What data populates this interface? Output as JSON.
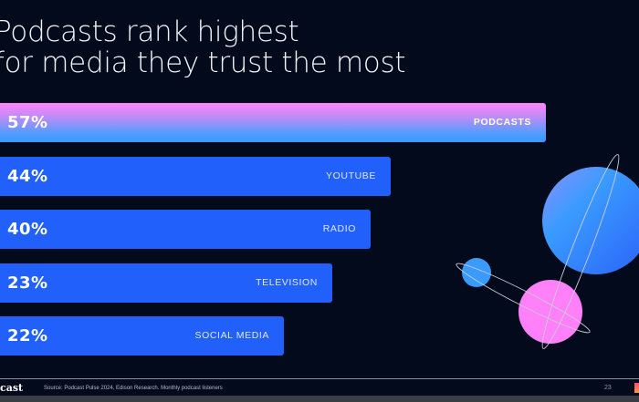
{
  "slide": {
    "title_lines": [
      "Podcasts rank highest",
      "for media they trust the most"
    ],
    "footer": {
      "brand": "cast",
      "source": "Source: Podcast Pulse 2024, Edison Research. Monthly podcast listeners",
      "page_number": "23"
    }
  },
  "colors": {
    "background": "#020a1c",
    "bar": "#2160fb",
    "highlight_top": "#ff84fb",
    "highlight_bottom": "#3b98ff",
    "planet_pink": "#ff80f8",
    "planet_blue": "#3a9bff"
  },
  "chart_data": {
    "type": "bar",
    "orientation": "horizontal",
    "title": "Podcasts rank highest for media they trust the most",
    "categories": [
      "PODCASTS",
      "YOUTUBE",
      "RADIO",
      "TELEVISION",
      "SOCIAL MEDIA"
    ],
    "values": [
      57,
      44,
      40,
      23,
      22
    ],
    "value_labels": [
      "57%",
      "44%",
      "40%",
      "23%",
      "22%"
    ],
    "highlighted_category": "PODCASTS",
    "unit": "%",
    "xlabel": "",
    "ylabel": "",
    "grid": false,
    "legend": "none"
  }
}
